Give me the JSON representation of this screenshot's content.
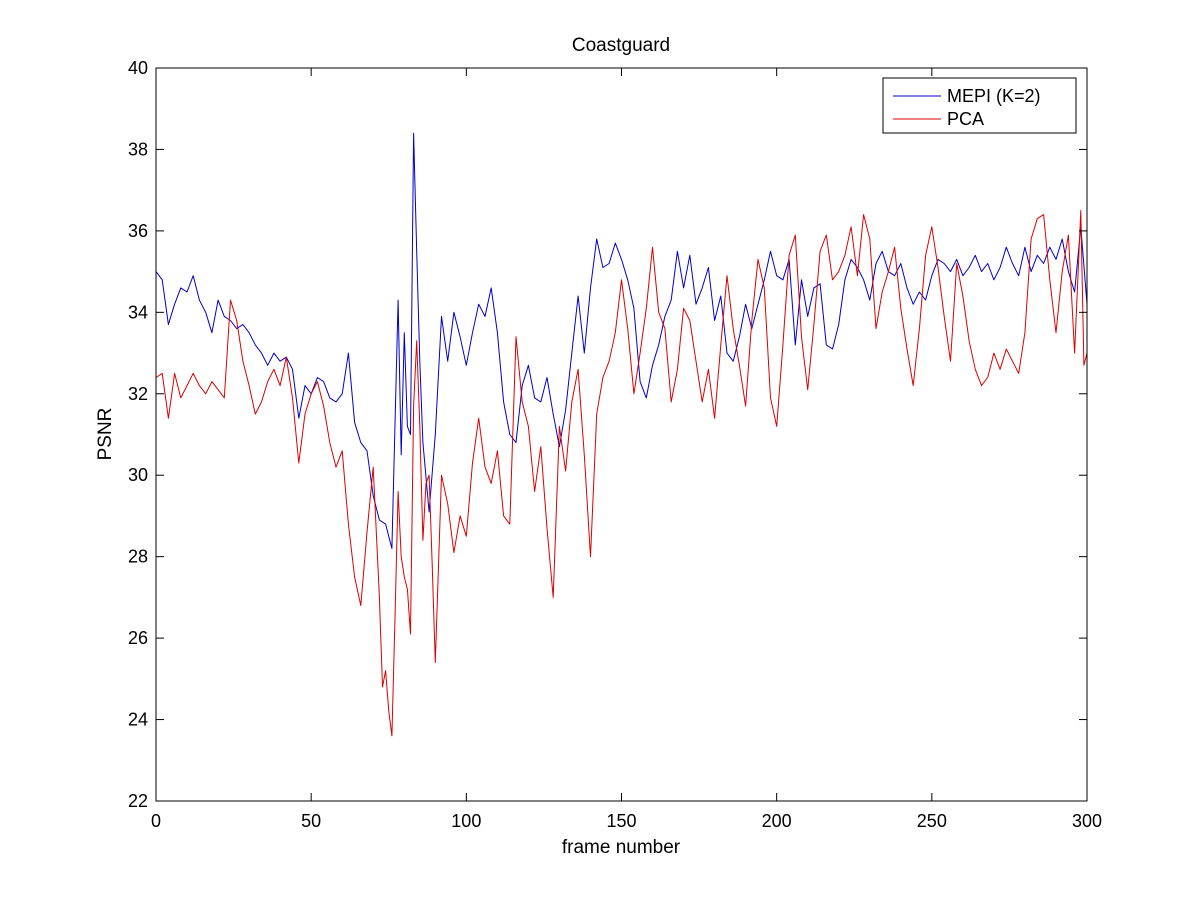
{
  "chart_data": {
    "type": "line",
    "title": "Coastguard",
    "xlabel": "frame number",
    "ylabel": "PSNR",
    "xlim": [
      0,
      300
    ],
    "ylim": [
      22,
      40
    ],
    "xticks": [
      0,
      50,
      100,
      150,
      200,
      250,
      300
    ],
    "yticks": [
      22,
      24,
      26,
      28,
      30,
      32,
      34,
      36,
      38,
      40
    ],
    "grid": false,
    "legend_position": "top-right",
    "series": [
      {
        "name": "MEPI (K=2)",
        "color": "#0000cc",
        "points": [
          [
            0,
            35.0
          ],
          [
            2,
            34.8
          ],
          [
            4,
            33.7
          ],
          [
            6,
            34.2
          ],
          [
            8,
            34.6
          ],
          [
            10,
            34.5
          ],
          [
            12,
            34.9
          ],
          [
            14,
            34.3
          ],
          [
            16,
            34.0
          ],
          [
            18,
            33.5
          ],
          [
            20,
            34.3
          ],
          [
            22,
            33.9
          ],
          [
            24,
            33.8
          ],
          [
            26,
            33.6
          ],
          [
            28,
            33.7
          ],
          [
            30,
            33.5
          ],
          [
            32,
            33.2
          ],
          [
            34,
            33.0
          ],
          [
            36,
            32.7
          ],
          [
            38,
            33.0
          ],
          [
            40,
            32.8
          ],
          [
            42,
            32.9
          ],
          [
            44,
            32.6
          ],
          [
            46,
            31.4
          ],
          [
            48,
            32.2
          ],
          [
            50,
            32.0
          ],
          [
            52,
            32.4
          ],
          [
            54,
            32.3
          ],
          [
            56,
            31.9
          ],
          [
            58,
            31.8
          ],
          [
            60,
            32.0
          ],
          [
            62,
            33.0
          ],
          [
            64,
            31.3
          ],
          [
            66,
            30.8
          ],
          [
            68,
            30.6
          ],
          [
            70,
            29.5
          ],
          [
            72,
            28.9
          ],
          [
            74,
            28.8
          ],
          [
            76,
            28.2
          ],
          [
            78,
            34.3
          ],
          [
            79,
            30.5
          ],
          [
            80,
            33.5
          ],
          [
            81,
            31.2
          ],
          [
            82,
            31.0
          ],
          [
            83,
            38.4
          ],
          [
            84,
            35.5
          ],
          [
            85,
            32.8
          ],
          [
            86,
            30.8
          ],
          [
            88,
            29.1
          ],
          [
            90,
            31.0
          ],
          [
            92,
            33.9
          ],
          [
            94,
            32.8
          ],
          [
            96,
            34.0
          ],
          [
            98,
            33.4
          ],
          [
            100,
            32.7
          ],
          [
            102,
            33.5
          ],
          [
            104,
            34.2
          ],
          [
            106,
            33.9
          ],
          [
            108,
            34.6
          ],
          [
            110,
            33.5
          ],
          [
            112,
            31.8
          ],
          [
            114,
            31.0
          ],
          [
            116,
            30.8
          ],
          [
            118,
            32.2
          ],
          [
            120,
            32.7
          ],
          [
            122,
            31.9
          ],
          [
            124,
            31.8
          ],
          [
            126,
            32.4
          ],
          [
            128,
            31.5
          ],
          [
            130,
            30.7
          ],
          [
            132,
            31.6
          ],
          [
            134,
            33.0
          ],
          [
            136,
            34.4
          ],
          [
            138,
            33.0
          ],
          [
            140,
            34.6
          ],
          [
            142,
            35.8
          ],
          [
            144,
            35.1
          ],
          [
            146,
            35.2
          ],
          [
            148,
            35.7
          ],
          [
            150,
            35.3
          ],
          [
            152,
            34.8
          ],
          [
            154,
            34.1
          ],
          [
            156,
            32.3
          ],
          [
            158,
            31.9
          ],
          [
            160,
            32.7
          ],
          [
            162,
            33.2
          ],
          [
            164,
            33.9
          ],
          [
            166,
            34.3
          ],
          [
            168,
            35.5
          ],
          [
            170,
            34.6
          ],
          [
            172,
            35.4
          ],
          [
            174,
            34.2
          ],
          [
            176,
            34.6
          ],
          [
            178,
            35.1
          ],
          [
            180,
            33.8
          ],
          [
            182,
            34.4
          ],
          [
            184,
            33.0
          ],
          [
            186,
            32.8
          ],
          [
            188,
            33.4
          ],
          [
            190,
            34.2
          ],
          [
            192,
            33.6
          ],
          [
            194,
            34.2
          ],
          [
            196,
            34.8
          ],
          [
            198,
            35.5
          ],
          [
            200,
            34.9
          ],
          [
            202,
            34.8
          ],
          [
            204,
            35.3
          ],
          [
            206,
            33.2
          ],
          [
            208,
            34.8
          ],
          [
            210,
            33.9
          ],
          [
            212,
            34.6
          ],
          [
            214,
            34.7
          ],
          [
            216,
            33.2
          ],
          [
            218,
            33.1
          ],
          [
            220,
            33.7
          ],
          [
            222,
            34.8
          ],
          [
            224,
            35.3
          ],
          [
            226,
            35.1
          ],
          [
            228,
            34.8
          ],
          [
            230,
            34.3
          ],
          [
            232,
            35.2
          ],
          [
            234,
            35.5
          ],
          [
            236,
            35.0
          ],
          [
            238,
            34.9
          ],
          [
            240,
            35.2
          ],
          [
            242,
            34.6
          ],
          [
            244,
            34.2
          ],
          [
            246,
            34.5
          ],
          [
            248,
            34.3
          ],
          [
            250,
            34.9
          ],
          [
            252,
            35.3
          ],
          [
            254,
            35.2
          ],
          [
            256,
            35.0
          ],
          [
            258,
            35.3
          ],
          [
            260,
            34.9
          ],
          [
            262,
            35.1
          ],
          [
            264,
            35.4
          ],
          [
            266,
            35.0
          ],
          [
            268,
            35.2
          ],
          [
            270,
            34.8
          ],
          [
            272,
            35.1
          ],
          [
            274,
            35.6
          ],
          [
            276,
            35.2
          ],
          [
            278,
            34.9
          ],
          [
            280,
            35.6
          ],
          [
            282,
            35.0
          ],
          [
            284,
            35.4
          ],
          [
            286,
            35.2
          ],
          [
            288,
            35.6
          ],
          [
            290,
            35.3
          ],
          [
            292,
            35.8
          ],
          [
            294,
            35.0
          ],
          [
            296,
            34.5
          ],
          [
            298,
            36.1
          ],
          [
            300,
            34.2
          ]
        ]
      },
      {
        "name": "PCA",
        "color": "#dd0000",
        "points": [
          [
            0,
            32.4
          ],
          [
            2,
            32.5
          ],
          [
            4,
            31.4
          ],
          [
            6,
            32.5
          ],
          [
            8,
            31.9
          ],
          [
            10,
            32.2
          ],
          [
            12,
            32.5
          ],
          [
            14,
            32.2
          ],
          [
            16,
            32.0
          ],
          [
            18,
            32.3
          ],
          [
            20,
            32.1
          ],
          [
            22,
            31.9
          ],
          [
            24,
            34.3
          ],
          [
            26,
            33.8
          ],
          [
            28,
            32.8
          ],
          [
            30,
            32.2
          ],
          [
            32,
            31.5
          ],
          [
            34,
            31.8
          ],
          [
            36,
            32.3
          ],
          [
            38,
            32.6
          ],
          [
            40,
            32.2
          ],
          [
            42,
            32.9
          ],
          [
            44,
            31.9
          ],
          [
            46,
            30.3
          ],
          [
            48,
            31.5
          ],
          [
            50,
            32.0
          ],
          [
            52,
            32.3
          ],
          [
            54,
            31.7
          ],
          [
            56,
            30.8
          ],
          [
            58,
            30.2
          ],
          [
            60,
            30.6
          ],
          [
            62,
            28.8
          ],
          [
            64,
            27.5
          ],
          [
            66,
            26.8
          ],
          [
            68,
            28.6
          ],
          [
            70,
            30.2
          ],
          [
            72,
            27.0
          ],
          [
            73,
            24.8
          ],
          [
            74,
            25.2
          ],
          [
            75,
            24.2
          ],
          [
            76,
            23.6
          ],
          [
            77,
            26.5
          ],
          [
            78,
            29.6
          ],
          [
            79,
            28.0
          ],
          [
            80,
            27.5
          ],
          [
            81,
            27.2
          ],
          [
            82,
            26.1
          ],
          [
            83,
            31.7
          ],
          [
            84,
            33.3
          ],
          [
            85,
            31.2
          ],
          [
            86,
            28.4
          ],
          [
            87,
            29.8
          ],
          [
            88,
            30.0
          ],
          [
            89,
            27.8
          ],
          [
            90,
            25.4
          ],
          [
            92,
            30.0
          ],
          [
            94,
            29.3
          ],
          [
            96,
            28.1
          ],
          [
            98,
            29.0
          ],
          [
            100,
            28.5
          ],
          [
            102,
            30.3
          ],
          [
            104,
            31.4
          ],
          [
            106,
            30.2
          ],
          [
            108,
            29.8
          ],
          [
            110,
            30.6
          ],
          [
            112,
            29.0
          ],
          [
            114,
            28.8
          ],
          [
            116,
            33.4
          ],
          [
            118,
            31.8
          ],
          [
            120,
            31.2
          ],
          [
            122,
            29.6
          ],
          [
            124,
            30.7
          ],
          [
            126,
            28.7
          ],
          [
            128,
            27.0
          ],
          [
            130,
            31.2
          ],
          [
            132,
            30.1
          ],
          [
            134,
            31.8
          ],
          [
            136,
            32.6
          ],
          [
            138,
            30.5
          ],
          [
            140,
            28.0
          ],
          [
            142,
            31.5
          ],
          [
            144,
            32.4
          ],
          [
            146,
            32.8
          ],
          [
            148,
            33.5
          ],
          [
            150,
            34.8
          ],
          [
            152,
            33.6
          ],
          [
            154,
            32.0
          ],
          [
            156,
            33.0
          ],
          [
            158,
            34.1
          ],
          [
            160,
            35.6
          ],
          [
            162,
            34.0
          ],
          [
            164,
            33.6
          ],
          [
            166,
            31.8
          ],
          [
            168,
            32.6
          ],
          [
            170,
            34.1
          ],
          [
            172,
            33.8
          ],
          [
            174,
            32.8
          ],
          [
            176,
            31.8
          ],
          [
            178,
            32.6
          ],
          [
            180,
            31.4
          ],
          [
            182,
            33.2
          ],
          [
            184,
            34.9
          ],
          [
            186,
            33.6
          ],
          [
            188,
            32.7
          ],
          [
            190,
            31.7
          ],
          [
            192,
            33.8
          ],
          [
            194,
            35.3
          ],
          [
            196,
            34.6
          ],
          [
            198,
            31.9
          ],
          [
            200,
            31.2
          ],
          [
            202,
            33.2
          ],
          [
            204,
            35.4
          ],
          [
            206,
            35.9
          ],
          [
            208,
            33.4
          ],
          [
            210,
            32.1
          ],
          [
            212,
            33.7
          ],
          [
            214,
            35.5
          ],
          [
            216,
            35.9
          ],
          [
            218,
            34.8
          ],
          [
            220,
            35.0
          ],
          [
            222,
            35.4
          ],
          [
            224,
            36.1
          ],
          [
            226,
            34.9
          ],
          [
            228,
            36.4
          ],
          [
            230,
            35.8
          ],
          [
            232,
            33.6
          ],
          [
            234,
            34.5
          ],
          [
            236,
            35.0
          ],
          [
            238,
            35.6
          ],
          [
            240,
            34.1
          ],
          [
            242,
            33.1
          ],
          [
            244,
            32.2
          ],
          [
            246,
            33.6
          ],
          [
            248,
            35.4
          ],
          [
            250,
            36.1
          ],
          [
            252,
            35.1
          ],
          [
            254,
            33.9
          ],
          [
            256,
            32.8
          ],
          [
            258,
            35.2
          ],
          [
            260,
            34.4
          ],
          [
            262,
            33.3
          ],
          [
            264,
            32.6
          ],
          [
            266,
            32.2
          ],
          [
            268,
            32.4
          ],
          [
            270,
            33.0
          ],
          [
            272,
            32.6
          ],
          [
            274,
            33.1
          ],
          [
            276,
            32.8
          ],
          [
            278,
            32.5
          ],
          [
            280,
            33.5
          ],
          [
            282,
            35.8
          ],
          [
            284,
            36.3
          ],
          [
            286,
            36.4
          ],
          [
            288,
            34.8
          ],
          [
            290,
            33.5
          ],
          [
            292,
            35.0
          ],
          [
            294,
            35.9
          ],
          [
            296,
            33.0
          ],
          [
            298,
            36.5
          ],
          [
            299,
            32.7
          ],
          [
            300,
            33.0
          ]
        ]
      }
    ]
  }
}
